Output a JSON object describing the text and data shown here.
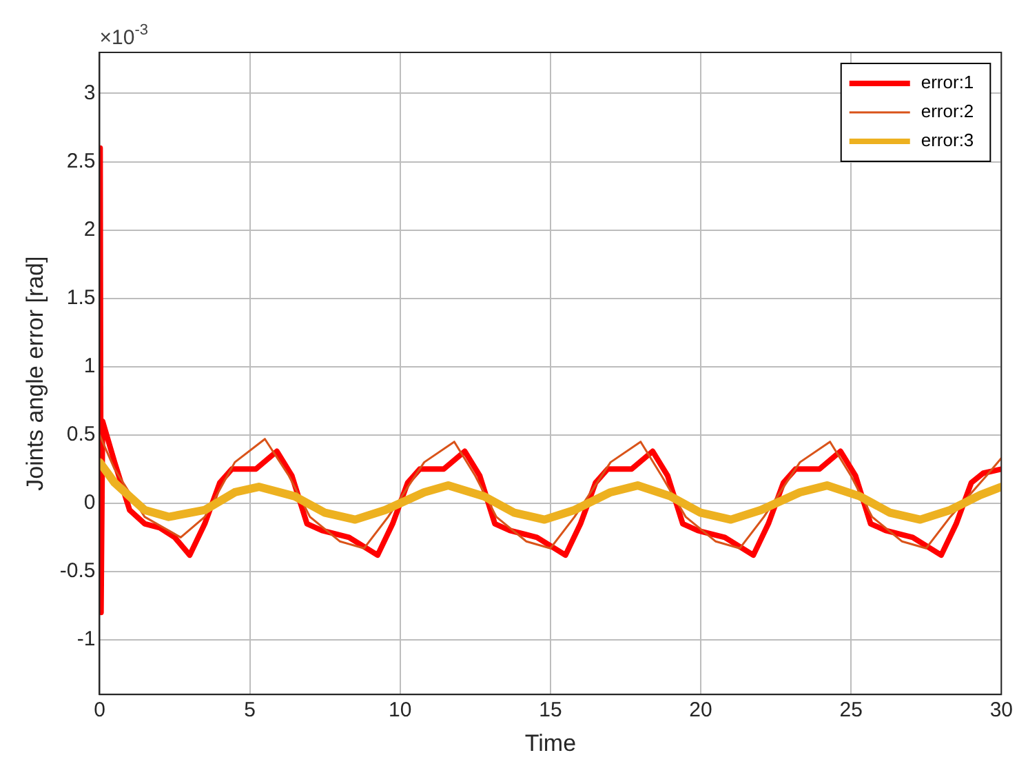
{
  "chart_data": {
    "type": "line",
    "xlabel": "Time",
    "ylabel": "Joints angle error [rad]",
    "annotations": [
      "×10$^{-3}$"
    ],
    "xlim": [
      0,
      30
    ],
    "xticks": [
      0,
      5,
      10,
      15,
      20,
      25,
      30
    ],
    "ylim": [
      -1.4,
      3.3
    ],
    "yticks": [
      -1,
      -0.5,
      0,
      0.5,
      1,
      1.5,
      2,
      2.5,
      3
    ],
    "grid": true,
    "legend": "top right",
    "line_style": "solid",
    "marker": "none",
    "series": [
      {
        "name": "error:1",
        "color": "#ff0000",
        "x": [
          0,
          0.02,
          0.05,
          0.1,
          0.5,
          1,
          1.5,
          2,
          2.5,
          3,
          3.5,
          4,
          4.4,
          5.2,
          5.9,
          6.4,
          6.9,
          7.4,
          8.3,
          9.25,
          9.75,
          10.25,
          10.65,
          11.45,
          12.15,
          12.65,
          13.15,
          13.65,
          14.55,
          15.5,
          16,
          16.5,
          16.9,
          17.7,
          18.4,
          18.9,
          19.4,
          19.9,
          20.8,
          21.75,
          22.25,
          22.75,
          23.15,
          23.95,
          24.65,
          25.15,
          25.65,
          26.15,
          27.05,
          28,
          28.5,
          29,
          29.4,
          30
        ],
        "values": [
          0,
          2.6,
          -0.8,
          0.6,
          0.3,
          -0.05,
          -0.15,
          -0.18,
          -0.25,
          -0.38,
          -0.15,
          0.15,
          0.25,
          0.25,
          0.38,
          0.2,
          -0.15,
          -0.2,
          -0.25,
          -0.38,
          -0.15,
          0.15,
          0.25,
          0.25,
          0.38,
          0.2,
          -0.15,
          -0.2,
          -0.25,
          -0.38,
          -0.15,
          0.15,
          0.25,
          0.25,
          0.38,
          0.2,
          -0.15,
          -0.2,
          -0.25,
          -0.38,
          -0.15,
          0.15,
          0.25,
          0.25,
          0.38,
          0.2,
          -0.15,
          -0.2,
          -0.25,
          -0.38,
          -0.15,
          0.15,
          0.22,
          0.25
        ]
      },
      {
        "name": "error:2",
        "color": "#d95319",
        "x": [
          0,
          0.5,
          1.5,
          2.7,
          3.5,
          4.5,
          5.5,
          6.3,
          7,
          8,
          8.8,
          9.6,
          10.8,
          11.8,
          12.5,
          13.2,
          14.2,
          15,
          15.8,
          17,
          18,
          18.7,
          19.5,
          20.5,
          21.3,
          22.1,
          23.3,
          24.3,
          25,
          25.7,
          26.7,
          27.5,
          28.3,
          29.5,
          30
        ],
        "values": [
          0.5,
          0.25,
          -0.1,
          -0.25,
          -0.1,
          0.3,
          0.47,
          0.2,
          -0.1,
          -0.28,
          -0.33,
          -0.1,
          0.3,
          0.45,
          0.2,
          -0.1,
          -0.28,
          -0.33,
          -0.1,
          0.3,
          0.45,
          0.2,
          -0.1,
          -0.28,
          -0.33,
          -0.1,
          0.3,
          0.45,
          0.2,
          -0.1,
          -0.28,
          -0.33,
          -0.1,
          0.2,
          0.33
        ]
      },
      {
        "name": "error:3",
        "color": "#edb120",
        "x": [
          0,
          0.5,
          1.5,
          2.3,
          3.5,
          4.5,
          5.3,
          6.5,
          7.5,
          8.5,
          9.5,
          10.8,
          11.6,
          12.8,
          13.8,
          14.8,
          15.8,
          17,
          17.9,
          19,
          20,
          21,
          22,
          23.3,
          24.2,
          25.3,
          26.3,
          27.3,
          28.3,
          29.3,
          30
        ],
        "values": [
          0.3,
          0.15,
          -0.05,
          -0.1,
          -0.05,
          0.08,
          0.12,
          0.05,
          -0.07,
          -0.12,
          -0.05,
          0.08,
          0.13,
          0.05,
          -0.07,
          -0.12,
          -0.05,
          0.08,
          0.13,
          0.05,
          -0.07,
          -0.12,
          -0.05,
          0.08,
          0.13,
          0.05,
          -0.07,
          -0.12,
          -0.05,
          0.06,
          0.12
        ]
      }
    ]
  }
}
